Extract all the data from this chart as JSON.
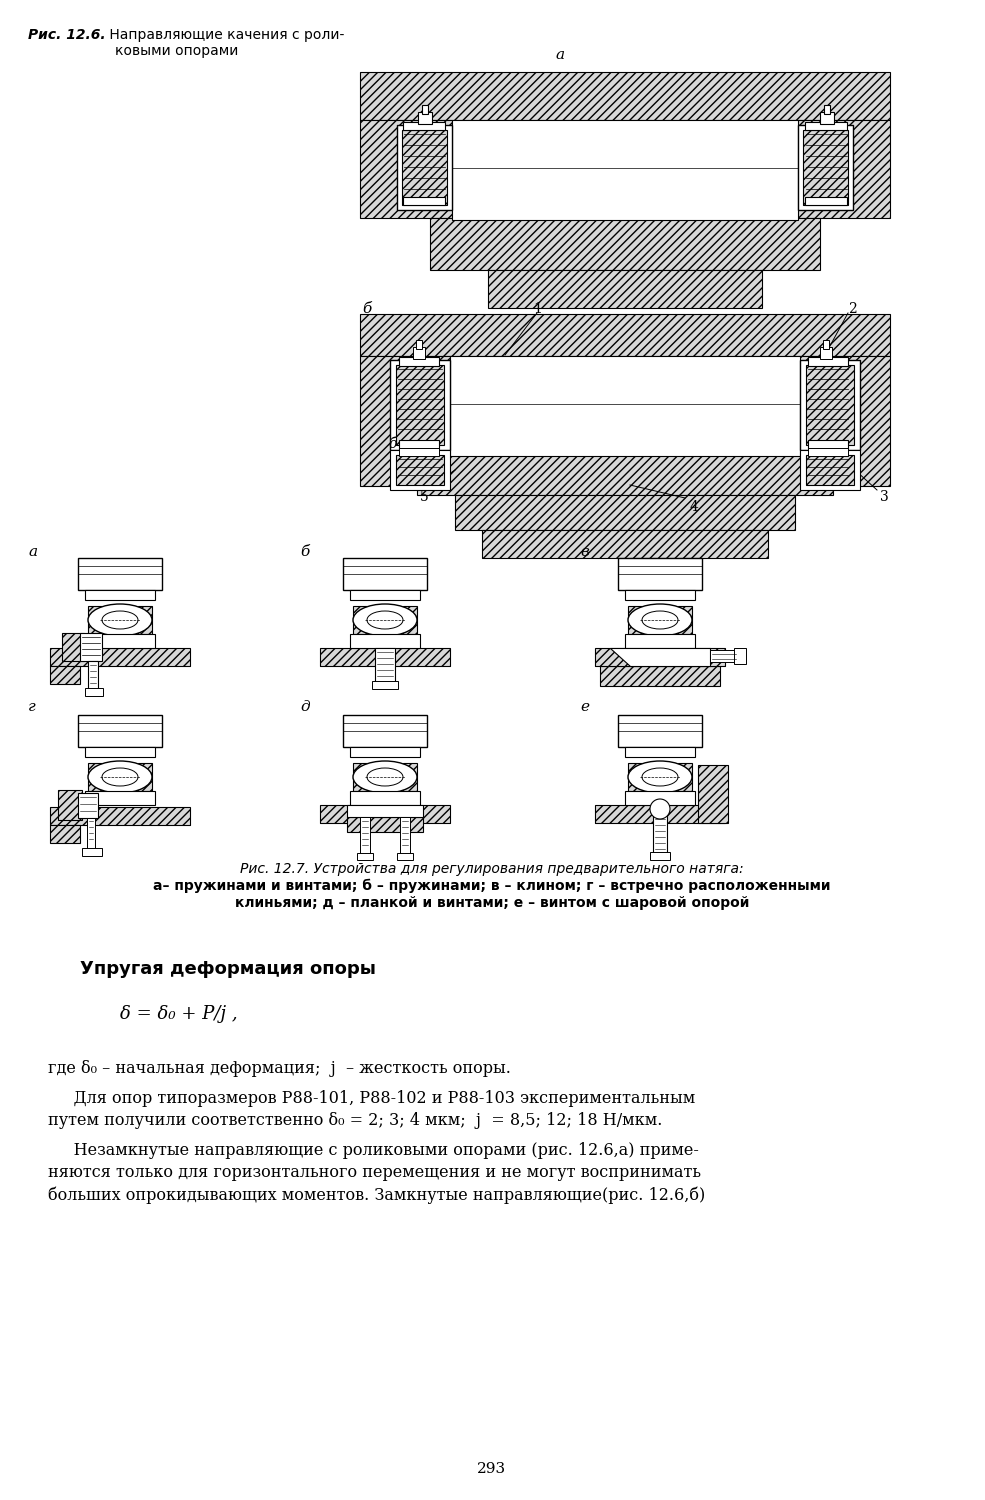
{
  "background_color": "#ffffff",
  "page_width": 9.85,
  "page_height": 15.0,
  "cap1_bold": "Рис. 12.6.",
  "cap1_rest": " Направляющие качения с роли-",
  "cap1_line2": "ковыми опорами",
  "cap2_bold": "Рис. 12.7.",
  "cap2_rest": " Устройства для регулирования предварительного натяга:",
  "cap2_line2": "а– пружинами и винтами; б – пружинами; в – клином; г – встречно расположенными",
  "cap2_line3": "клиньями; д – планкой и винтами; е – винтом с шаровой опорой",
  "section_title": "Упругая деформация опоры",
  "formula_line": "δ = δ₀ + P/j ,",
  "formula_note": "где δ₀ – начальная деформация;  j  – жесткость опоры.",
  "para1_line1": "     Для опор типоразмеров Р88-101, Р88-102 и Р88-103 экспериментальным",
  "para1_line2": "путем получили соответственно δ₀ = 2; 3; 4 мкм;  j  = 8,5; 12; 18 Н/мкм.",
  "para2_line1": "     Незамкнутые направляющие с роликовыми опорами (рис. 12.6,а) приме-",
  "para2_line2": "няются только для горизонтального перемещения и не могут воспринимать",
  "para2_line3": "больших опрокидывающих моментов. Замкнутые направляющие(рис. 12.6,б)",
  "page_number": "293",
  "label_a": "а",
  "label_b_fig6": "б",
  "label_b_side": "б",
  "label_1": "1",
  "label_2": "2",
  "label_3": "3",
  "label_4": "4",
  "label_5": "5",
  "subfig_row1_labels": [
    "а",
    "б",
    "в"
  ],
  "subfig_row2_labels": [
    "г",
    "д",
    "е"
  ],
  "hatch_color": "#000000",
  "hatch_fc": "#d8d8d8",
  "line_color": "#000000",
  "text_color": "#000000"
}
